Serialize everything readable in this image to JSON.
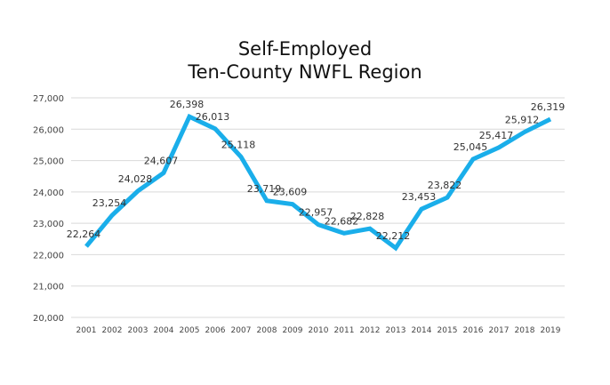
{
  "chart_data": {
    "type": "line",
    "title": [
      "Self-Employed",
      "Ten-County NWFL Region"
    ],
    "xlabel": "",
    "ylabel": "",
    "categories": [
      "2001",
      "2002",
      "2003",
      "2004",
      "2005",
      "2006",
      "2007",
      "2008",
      "2009",
      "2010",
      "2011",
      "2012",
      "2013",
      "2014",
      "2015",
      "2016",
      "2017",
      "2018",
      "2019"
    ],
    "series": [
      {
        "name": "Self-Employed",
        "values": [
          22264,
          23254,
          24028,
          24607,
          26398,
          26013,
          25118,
          23719,
          23609,
          22957,
          22682,
          22828,
          22212,
          23453,
          23822,
          25045,
          25417,
          25912,
          26319
        ],
        "labels": [
          "22,264",
          "23,254",
          "24,028",
          "24,607",
          "26,398",
          "26,013",
          "25,118",
          "23,719",
          "23,609",
          "22,957",
          "22,682",
          "22,828",
          "22,212",
          "23,453",
          "23,822",
          "25,045",
          "25,417",
          "25,912",
          "26,319"
        ],
        "color": "#1aaeea"
      }
    ],
    "ylim": [
      20000,
      27000
    ],
    "yticks": [
      "20,000",
      "21,000",
      "22,000",
      "23,000",
      "24,000",
      "25,000",
      "26,000",
      "27,000"
    ],
    "grid": true,
    "legend": "none"
  }
}
